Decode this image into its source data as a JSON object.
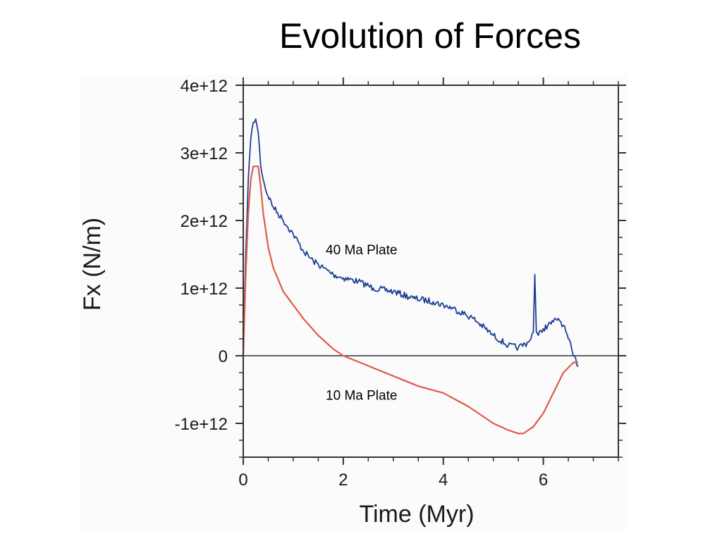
{
  "slide": {
    "title": "Evolution of Forces"
  },
  "chart_data": {
    "type": "line",
    "title": "",
    "xlabel": "Time (Myr)",
    "ylabel": "Fx (N/m)",
    "xlim": [
      0,
      7.5
    ],
    "ylim": [
      -1500000000000.0,
      4000000000000.0
    ],
    "x_ticks": [
      {
        "value": 0,
        "label": "0"
      },
      {
        "value": 2,
        "label": "2"
      },
      {
        "value": 4,
        "label": "4"
      },
      {
        "value": 6,
        "label": "6"
      }
    ],
    "y_ticks": [
      {
        "value": 4000000000000.0,
        "label": "4e+12"
      },
      {
        "value": 3000000000000.0,
        "label": "3e+12"
      },
      {
        "value": 2000000000000.0,
        "label": "2e+12"
      },
      {
        "value": 1000000000000.0,
        "label": "1e+12"
      },
      {
        "value": 0,
        "label": "0"
      },
      {
        "value": -1000000000000.0,
        "label": "-1e+12"
      }
    ],
    "zero_line": true,
    "grid": false,
    "legend": "none",
    "series": [
      {
        "name": "40 Ma Plate",
        "color": "#1f3f96",
        "noise": true,
        "x": [
          0,
          0.05,
          0.1,
          0.15,
          0.2,
          0.25,
          0.3,
          0.35,
          0.45,
          0.6,
          0.8,
          1.0,
          1.2,
          1.4,
          1.6,
          1.8,
          2.0,
          2.3,
          2.6,
          3.0,
          3.4,
          3.8,
          4.2,
          4.6,
          5.0,
          5.3,
          5.5,
          5.7,
          5.8,
          5.83,
          5.86,
          5.9,
          6.0,
          6.2,
          6.3,
          6.4,
          6.5,
          6.6,
          6.7
        ],
        "y": [
          0,
          1500000000000.0,
          2600000000000.0,
          3200000000000.0,
          3450000000000.0,
          3500000000000.0,
          3300000000000.0,
          2800000000000.0,
          2450000000000.0,
          2200000000000.0,
          2000000000000.0,
          1800000000000.0,
          1550000000000.0,
          1400000000000.0,
          1300000000000.0,
          1200000000000.0,
          1150000000000.0,
          1100000000000.0,
          1000000000000.0,
          950000000000.0,
          850000000000.0,
          800000000000.0,
          700000000000.0,
          550000000000.0,
          300000000000.0,
          150000000000.0,
          120000000000.0,
          200000000000.0,
          350000000000.0,
          1200000000000.0,
          350000000000.0,
          300000000000.0,
          400000000000.0,
          500000000000.0,
          550000000000.0,
          450000000000.0,
          250000000000.0,
          0.0,
          -150000000000.0
        ]
      },
      {
        "name": "10 Ma Plate",
        "color": "#e0594a",
        "noise": false,
        "x": [
          0,
          0.05,
          0.1,
          0.15,
          0.2,
          0.25,
          0.3,
          0.35,
          0.4,
          0.5,
          0.6,
          0.8,
          1.0,
          1.2,
          1.5,
          1.8,
          2.0,
          2.5,
          3.0,
          3.5,
          4.0,
          4.5,
          5.0,
          5.3,
          5.5,
          5.6,
          5.8,
          6.0,
          6.2,
          6.4,
          6.6,
          6.7
        ],
        "y": [
          0,
          1200000000000.0,
          2100000000000.0,
          2600000000000.0,
          2800000000000.0,
          2800000000000.0,
          2800000000000.0,
          2500000000000.0,
          2100000000000.0,
          1600000000000.0,
          1300000000000.0,
          950000000000.0,
          750000000000.0,
          550000000000.0,
          300000000000.0,
          100000000000.0,
          0.0,
          -150000000000.0,
          -300000000000.0,
          -450000000000.0,
          -550000000000.0,
          -750000000000.0,
          -1000000000000.0,
          -1100000000000.0,
          -1150000000000.0,
          -1150000000000.0,
          -1050000000000.0,
          -850000000000.0,
          -550000000000.0,
          -250000000000.0,
          -100000000000.0,
          -100000000000.0
        ]
      }
    ],
    "annotations": [
      {
        "text": "40 Ma Plate",
        "x": 1.65,
        "y": 1500000000000.0
      },
      {
        "text": "10 Ma Plate",
        "x": 1.65,
        "y": -650000000000.0
      }
    ]
  }
}
